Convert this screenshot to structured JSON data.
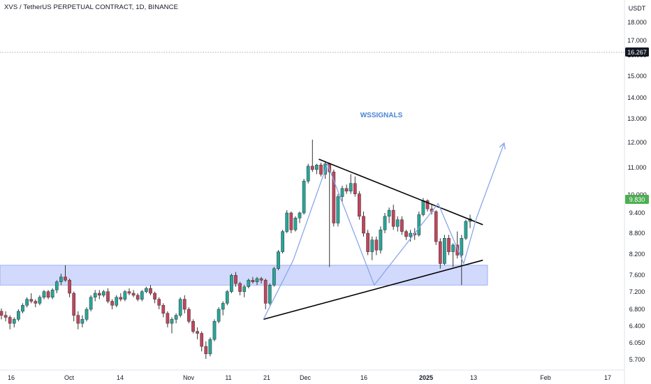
{
  "header": {
    "title": "XVS / TetherUS PERPETUAL CONTRACT, 1D, BINANCE"
  },
  "annotation": "WSSIGNALS",
  "colors": {
    "up": "#26a69a",
    "down": "#c2455d",
    "zone": "#c9d4fb",
    "zone_border": "#8fa3ef",
    "projection": "#8aa6ea",
    "annotation": "#4a84d4",
    "price_badge": "#4caf50",
    "last_badge": "#131722"
  },
  "chart_data": {
    "type": "candlestick",
    "symbol": "XVS / TetherUS PERPETUAL CONTRACT",
    "interval": "1D",
    "exchange": "BINANCE",
    "y_axis_unit": "USDT",
    "y_ticks": [
      "5.700",
      "6.050",
      "6.400",
      "6.800",
      "7.200",
      "7.600",
      "8.200",
      "8.800",
      "9.400",
      "10.000",
      "11.000",
      "12.000",
      "13.000",
      "14.000",
      "15.000",
      "16.000",
      "17.000",
      "18.000"
    ],
    "x_ticks": [
      {
        "label": "16",
        "bold": false
      },
      {
        "label": "Oct",
        "bold": false
      },
      {
        "label": "14",
        "bold": false
      },
      {
        "label": "Nov",
        "bold": false
      },
      {
        "label": "11",
        "bold": false
      },
      {
        "label": "21",
        "bold": false
      },
      {
        "label": "Dec",
        "bold": false
      },
      {
        "label": "16",
        "bold": false
      },
      {
        "label": "2025",
        "bold": true
      },
      {
        "label": "13",
        "bold": false
      },
      {
        "label": "Feb",
        "bold": false
      },
      {
        "label": "17",
        "bold": false
      }
    ],
    "last_price": "9.830",
    "reference_price": "16.267",
    "support_zone": {
      "low": 7.85,
      "high": 8.45
    },
    "candles": [
      [
        7.15,
        7.22,
        6.95,
        7.05
      ],
      [
        7.05,
        7.15,
        6.9,
        7.0
      ],
      [
        7.0,
        7.05,
        6.7,
        6.85
      ],
      [
        6.85,
        7.0,
        6.75,
        6.95
      ],
      [
        6.95,
        7.2,
        6.9,
        7.15
      ],
      [
        7.15,
        7.35,
        7.1,
        7.3
      ],
      [
        7.3,
        7.5,
        7.25,
        7.45
      ],
      [
        7.45,
        7.6,
        7.35,
        7.4
      ],
      [
        7.4,
        7.45,
        7.25,
        7.35
      ],
      [
        7.35,
        7.55,
        7.3,
        7.5
      ],
      [
        7.5,
        7.7,
        7.45,
        7.65
      ],
      [
        7.65,
        7.7,
        7.45,
        7.5
      ],
      [
        7.5,
        7.75,
        7.45,
        7.7
      ],
      [
        7.7,
        8.0,
        7.6,
        7.95
      ],
      [
        7.95,
        8.2,
        7.85,
        8.1
      ],
      [
        8.1,
        8.45,
        7.95,
        8.0
      ],
      [
        8.0,
        8.05,
        7.5,
        7.6
      ],
      [
        7.6,
        7.65,
        6.9,
        7.05
      ],
      [
        7.05,
        7.15,
        6.7,
        6.85
      ],
      [
        6.85,
        7.05,
        6.75,
        6.95
      ],
      [
        6.95,
        7.25,
        6.9,
        7.2
      ],
      [
        7.2,
        7.55,
        7.15,
        7.5
      ],
      [
        7.5,
        7.7,
        7.4,
        7.6
      ],
      [
        7.6,
        7.7,
        7.45,
        7.55
      ],
      [
        7.55,
        7.7,
        7.5,
        7.65
      ],
      [
        7.65,
        7.75,
        7.35,
        7.4
      ],
      [
        7.4,
        7.45,
        7.2,
        7.3
      ],
      [
        7.3,
        7.55,
        7.25,
        7.5
      ],
      [
        7.5,
        7.6,
        7.4,
        7.45
      ],
      [
        7.45,
        7.7,
        7.4,
        7.65
      ],
      [
        7.65,
        7.75,
        7.55,
        7.6
      ],
      [
        7.6,
        7.7,
        7.5,
        7.55
      ],
      [
        7.55,
        7.6,
        7.4,
        7.45
      ],
      [
        7.45,
        7.7,
        7.4,
        7.65
      ],
      [
        7.65,
        7.8,
        7.6,
        7.75
      ],
      [
        7.75,
        7.85,
        7.55,
        7.6
      ],
      [
        7.6,
        7.65,
        7.35,
        7.45
      ],
      [
        7.45,
        7.5,
        7.2,
        7.3
      ],
      [
        7.3,
        7.35,
        7.0,
        7.1
      ],
      [
        7.1,
        7.15,
        6.75,
        6.85
      ],
      [
        6.85,
        7.0,
        6.6,
        6.95
      ],
      [
        6.95,
        7.1,
        6.85,
        7.05
      ],
      [
        7.05,
        7.5,
        7.0,
        7.45
      ],
      [
        7.45,
        7.55,
        7.1,
        7.2
      ],
      [
        7.2,
        7.25,
        6.85,
        6.9
      ],
      [
        6.9,
        6.95,
        6.6,
        6.65
      ],
      [
        6.65,
        6.75,
        6.45,
        6.6
      ],
      [
        6.6,
        6.65,
        6.2,
        6.3
      ],
      [
        6.3,
        6.4,
        6.05,
        6.15
      ],
      [
        6.15,
        6.5,
        6.1,
        6.45
      ],
      [
        6.45,
        6.95,
        6.4,
        6.9
      ],
      [
        6.9,
        7.25,
        6.85,
        7.2
      ],
      [
        7.2,
        7.4,
        7.05,
        7.35
      ],
      [
        7.35,
        7.7,
        7.3,
        7.65
      ],
      [
        7.65,
        8.2,
        7.6,
        8.15
      ],
      [
        8.15,
        8.25,
        7.8,
        7.9
      ],
      [
        7.9,
        7.95,
        7.55,
        7.65
      ],
      [
        7.65,
        7.85,
        7.5,
        7.8
      ],
      [
        7.8,
        8.05,
        7.75,
        8.0
      ],
      [
        8.0,
        8.1,
        7.9,
        7.95
      ],
      [
        7.95,
        8.1,
        7.85,
        8.05
      ],
      [
        8.05,
        8.1,
        7.9,
        8.0
      ],
      [
        8.0,
        8.05,
        7.2,
        7.35
      ],
      [
        7.35,
        7.9,
        7.3,
        7.85
      ],
      [
        7.85,
        8.4,
        7.8,
        8.35
      ],
      [
        8.35,
        8.9,
        8.3,
        8.85
      ],
      [
        8.85,
        9.5,
        8.8,
        9.45
      ],
      [
        9.45,
        10.1,
        9.4,
        10.0
      ],
      [
        10.0,
        10.05,
        9.4,
        9.5
      ],
      [
        9.5,
        9.9,
        9.45,
        9.85
      ],
      [
        9.85,
        10.05,
        9.7,
        10.0
      ],
      [
        10.0,
        11.3,
        9.95,
        11.2
      ],
      [
        11.2,
        11.95,
        11.1,
        11.85
      ],
      [
        11.85,
        13.0,
        11.6,
        11.7
      ],
      [
        11.7,
        11.95,
        11.5,
        11.9
      ],
      [
        11.9,
        12.0,
        11.4,
        11.5
      ],
      [
        11.5,
        12.05,
        11.3,
        11.95
      ],
      [
        11.95,
        12.0,
        8.4,
        11.6
      ],
      [
        11.6,
        11.7,
        9.6,
        9.7
      ],
      [
        9.7,
        10.7,
        9.6,
        10.6
      ],
      [
        10.6,
        11.0,
        10.4,
        10.9
      ],
      [
        10.9,
        11.05,
        10.7,
        10.8
      ],
      [
        10.8,
        11.5,
        10.7,
        11.1
      ],
      [
        11.1,
        11.4,
        10.6,
        10.7
      ],
      [
        10.7,
        10.8,
        9.8,
        9.9
      ],
      [
        9.9,
        10.05,
        9.3,
        9.4
      ],
      [
        9.4,
        9.5,
        8.75,
        8.85
      ],
      [
        8.85,
        9.3,
        8.6,
        9.2
      ],
      [
        9.2,
        9.3,
        8.75,
        8.9
      ],
      [
        8.9,
        9.6,
        8.8,
        9.5
      ],
      [
        9.5,
        10.0,
        9.4,
        9.9
      ],
      [
        9.9,
        10.2,
        9.7,
        10.1
      ],
      [
        10.1,
        10.3,
        9.5,
        9.6
      ],
      [
        9.6,
        9.9,
        9.45,
        9.8
      ],
      [
        9.8,
        9.9,
        9.35,
        9.45
      ],
      [
        9.45,
        9.5,
        9.2,
        9.3
      ],
      [
        9.3,
        9.5,
        9.15,
        9.4
      ],
      [
        9.4,
        9.55,
        9.2,
        9.35
      ],
      [
        9.35,
        10.05,
        9.3,
        9.95
      ],
      [
        9.95,
        10.55,
        9.9,
        10.45
      ],
      [
        10.45,
        10.5,
        10.05,
        10.15
      ],
      [
        10.15,
        10.3,
        9.95,
        10.05
      ],
      [
        10.05,
        10.1,
        9.05,
        9.15
      ],
      [
        9.15,
        9.25,
        8.35,
        8.5
      ],
      [
        8.5,
        9.35,
        8.45,
        9.25
      ],
      [
        9.25,
        9.35,
        8.75,
        8.85
      ],
      [
        8.85,
        9.1,
        8.4,
        9.05
      ],
      [
        9.05,
        9.45,
        8.65,
        8.75
      ],
      [
        8.75,
        9.35,
        7.85,
        9.25
      ],
      [
        9.25,
        9.8,
        9.2,
        9.75
      ],
      [
        9.75,
        9.95,
        9.55,
        9.83
      ]
    ],
    "trendlines": [
      {
        "from": [
          74.5,
          12.15
        ],
        "to": [
          113,
          9.65
        ],
        "role": "upper"
      },
      {
        "from": [
          61.5,
          6.95
        ],
        "to": [
          113,
          8.6
        ],
        "role": "lower"
      }
    ],
    "projection_path": [
      [
        61.5,
        6.95
      ],
      [
        68.5,
        8.6
      ],
      [
        76.5,
        11.95
      ],
      [
        87.5,
        7.85
      ],
      [
        102.5,
        10.35
      ],
      [
        108.5,
        8.5
      ],
      [
        111.5,
        9.85
      ],
      [
        118,
        12.85
      ]
    ]
  }
}
